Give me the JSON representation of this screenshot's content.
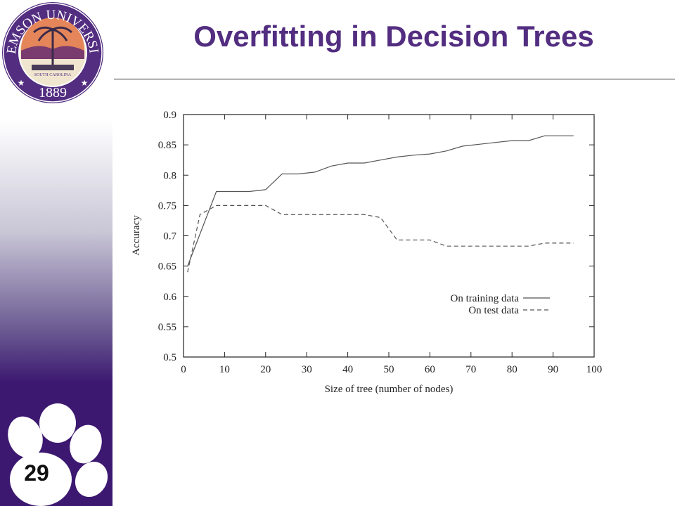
{
  "slide": {
    "title": "Overfitting in Decision Trees",
    "number": "29"
  },
  "logo": {
    "name": "CLEMSON UNIVERSITY",
    "state": "SOUTH CAROLINA",
    "year": "1889"
  },
  "colors": {
    "brand_purple": "#522d80",
    "sidebar_dark": "#3c1870"
  },
  "chart_data": {
    "type": "line",
    "xlabel": "Size of tree (number of nodes)",
    "ylabel": "Accuracy",
    "xlim": [
      0,
      100
    ],
    "ylim": [
      0.5,
      0.9
    ],
    "xticks": [
      0,
      10,
      20,
      30,
      40,
      50,
      60,
      70,
      80,
      90,
      100
    ],
    "yticks": [
      0.5,
      0.55,
      0.6,
      0.65,
      0.7,
      0.75,
      0.8,
      0.85,
      0.9
    ],
    "ytick_labels": [
      "0.5",
      "0.55",
      "0.6",
      "0.65",
      "0.7",
      "0.75",
      "0.8",
      "0.85",
      "0.9"
    ],
    "legend_position": "lower-right",
    "series": [
      {
        "name": "On training data",
        "style": "solid",
        "x": [
          1,
          8,
          16,
          20,
          24,
          28,
          32,
          36,
          40,
          44,
          48,
          52,
          56,
          60,
          64,
          68,
          72,
          76,
          80,
          84,
          88,
          95
        ],
        "y": [
          0.65,
          0.773,
          0.773,
          0.776,
          0.802,
          0.802,
          0.805,
          0.815,
          0.82,
          0.82,
          0.825,
          0.83,
          0.833,
          0.835,
          0.84,
          0.848,
          0.851,
          0.854,
          0.857,
          0.857,
          0.865,
          0.865
        ]
      },
      {
        "name": "On test data",
        "style": "dashed",
        "x": [
          1,
          4,
          8,
          20,
          24,
          28,
          44,
          48,
          52,
          56,
          60,
          64,
          68,
          84,
          88,
          95
        ],
        "y": [
          0.64,
          0.735,
          0.75,
          0.75,
          0.735,
          0.735,
          0.735,
          0.73,
          0.693,
          0.693,
          0.693,
          0.683,
          0.683,
          0.683,
          0.688,
          0.688
        ]
      }
    ]
  }
}
